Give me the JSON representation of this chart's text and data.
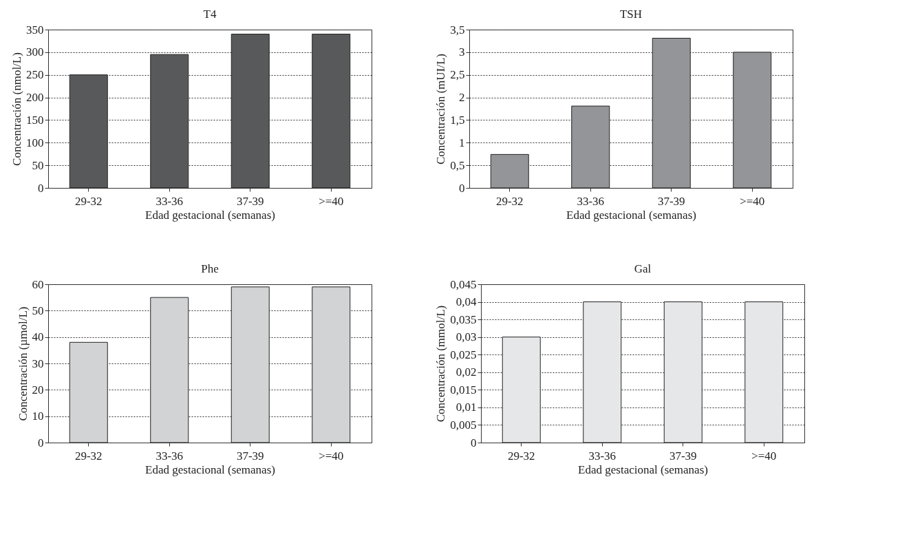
{
  "chart_data": [
    {
      "type": "bar",
      "title": "T4",
      "xlabel": "Edad gestacional (semanas)",
      "ylabel": "Concentración (nmol/L)",
      "categories": [
        "29-32",
        "33-36",
        "37-39",
        ">=40"
      ],
      "values": [
        250,
        295,
        340,
        340
      ],
      "color": "#58595b",
      "ylim": [
        0,
        350
      ],
      "yticks": [
        0,
        50,
        100,
        150,
        200,
        250,
        300,
        350
      ],
      "grid": "y"
    },
    {
      "type": "bar",
      "title": "TSH",
      "xlabel": "Edad gestacional (semanas)",
      "ylabel": "Concentración (mUI/L)",
      "categories": [
        "29-32",
        "33-36",
        "37-39",
        ">=40"
      ],
      "values": [
        0.74,
        1.81,
        3.31,
        3.0
      ],
      "color": "#939598",
      "ylim": [
        0,
        3.5
      ],
      "yticks": [
        0,
        {
          "value": 0.5,
          "label": "0,5"
        },
        1,
        {
          "value": 1.5,
          "label": "1,5"
        },
        2,
        {
          "value": 2.5,
          "label": "2,5"
        },
        3,
        {
          "value": 3.5,
          "label": "3,5"
        }
      ],
      "grid": "y"
    },
    {
      "type": "bar",
      "title": "Phe",
      "xlabel": "Edad gestacional (semanas)",
      "ylabel": "Concentración (µmol/L)",
      "categories": [
        "29-32",
        "33-36",
        "37-39",
        ">=40"
      ],
      "values": [
        38,
        55,
        59,
        59
      ],
      "color": "#d1d3d4",
      "ylim": [
        0,
        60
      ],
      "yticks": [
        0,
        10,
        20,
        30,
        40,
        50,
        60
      ],
      "grid": "y"
    },
    {
      "type": "bar",
      "title": "Gal",
      "xlabel": "Edad gestacional (semanas)",
      "ylabel": "Concentración (mmol/L)",
      "categories": [
        "29-32",
        "33-36",
        "37-39",
        ">=40"
      ],
      "values": [
        0.03,
        0.04,
        0.04,
        0.04
      ],
      "color": "#e6e7e8",
      "ylim": [
        0,
        0.045
      ],
      "yticks": [
        0,
        {
          "value": 0.005,
          "label": "0,005"
        },
        {
          "value": 0.01,
          "label": "0,01"
        },
        {
          "value": 0.015,
          "label": "0,015"
        },
        {
          "value": 0.02,
          "label": "0,02"
        },
        {
          "value": 0.025,
          "label": "0,025"
        },
        {
          "value": 0.03,
          "label": "0,03"
        },
        {
          "value": 0.035,
          "label": "0,035"
        },
        {
          "value": 0.04,
          "label": "0,04"
        },
        {
          "value": 0.045,
          "label": "0,045"
        }
      ],
      "grid": "y"
    }
  ]
}
